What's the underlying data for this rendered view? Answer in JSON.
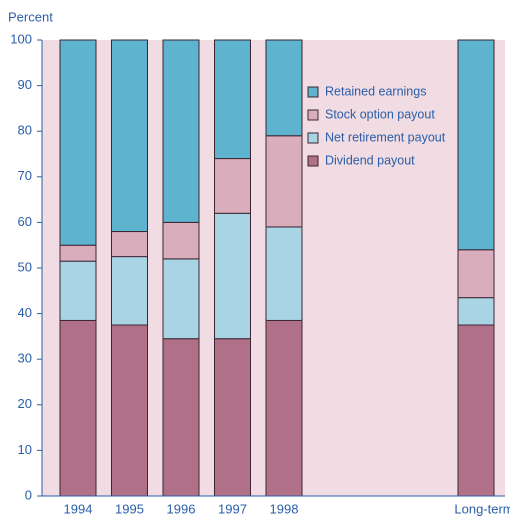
{
  "chart_data": {
    "type": "stacked_bar",
    "y_label": "Percent",
    "categories": [
      "1994",
      "1995",
      "1996",
      "1997",
      "1998",
      "Long-term"
    ],
    "series": [
      {
        "name": "Dividend payout",
        "color": "#b07088",
        "values": [
          38.5,
          37.5,
          34.5,
          34.5,
          38.5,
          37.5
        ]
      },
      {
        "name": "Net retirement payout",
        "color": "#a9d4e4",
        "values": [
          13,
          15,
          17.5,
          27.5,
          20.5,
          6
        ]
      },
      {
        "name": "Stock option payout",
        "color": "#d9adbb",
        "values": [
          3.5,
          5.5,
          8,
          12,
          20,
          10.5
        ]
      },
      {
        "name": "Retained earnings",
        "color": "#5eb3cf",
        "values": [
          45,
          42,
          40,
          26,
          21,
          46
        ]
      }
    ],
    "ylim": [
      0,
      100
    ],
    "yticks": [
      0,
      10,
      20,
      30,
      40,
      50,
      60,
      70,
      80,
      90,
      100
    ],
    "grid": false
  }
}
